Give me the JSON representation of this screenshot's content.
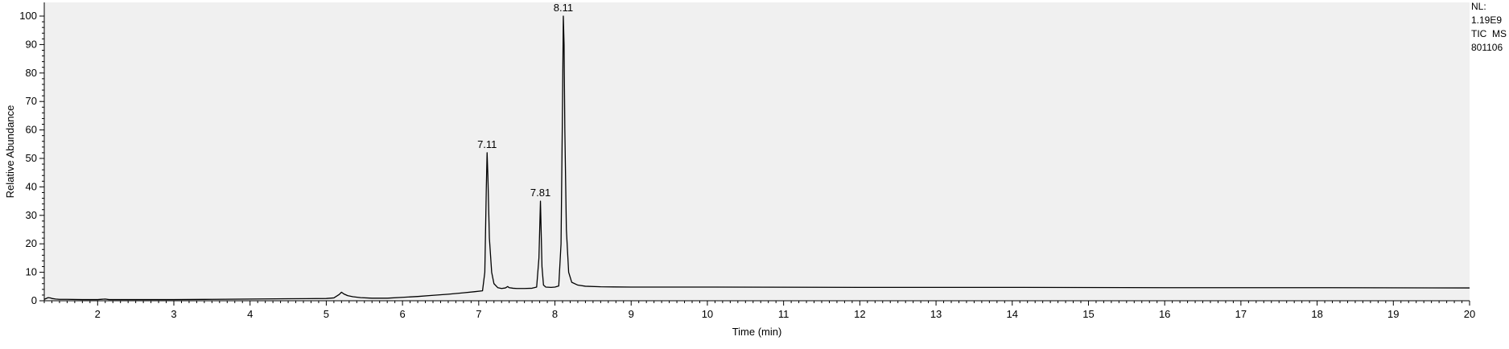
{
  "chart_data": {
    "type": "line",
    "title": "",
    "xlabel": "Time (min)",
    "ylabel": "Relative Abundance",
    "xlim": [
      1.3,
      20
    ],
    "ylim": [
      0,
      100
    ],
    "x_ticks": [
      2,
      3,
      4,
      5,
      6,
      7,
      8,
      9,
      10,
      11,
      12,
      13,
      14,
      15,
      16,
      17,
      18,
      19,
      20
    ],
    "y_ticks": [
      0,
      10,
      20,
      30,
      40,
      50,
      60,
      70,
      80,
      90,
      100
    ],
    "grid": false,
    "background": "#f0f0f0",
    "line_color": "#000000",
    "info_box": {
      "lines": [
        "NL:",
        "1.19E9",
        "TIC  MS",
        "801106"
      ],
      "position": "top-right"
    },
    "peak_labels": [
      {
        "x": 7.11,
        "y": 52,
        "label": "7.11"
      },
      {
        "x": 7.81,
        "y": 35,
        "label": "7.81"
      },
      {
        "x": 8.11,
        "y": 100,
        "label": "8.11"
      }
    ],
    "series": [
      {
        "x": [
          1.3,
          1.35,
          1.38,
          1.4,
          1.45,
          1.5,
          1.6,
          1.8,
          2.0,
          2.1,
          2.15,
          2.3,
          2.6,
          3.0,
          3.5,
          4.0,
          4.5,
          5.0,
          5.1,
          5.17,
          5.2,
          5.23,
          5.28,
          5.35,
          5.45,
          5.6,
          5.8,
          6.0,
          6.2,
          6.4,
          6.6,
          6.8,
          6.95,
          7.05,
          7.08,
          7.1,
          7.11,
          7.12,
          7.14,
          7.17,
          7.2,
          7.25,
          7.3,
          7.35,
          7.38,
          7.4,
          7.45,
          7.5,
          7.6,
          7.7,
          7.76,
          7.79,
          7.81,
          7.83,
          7.85,
          7.88,
          7.95,
          8.0,
          8.05,
          8.08,
          8.1,
          8.11,
          8.12,
          8.13,
          8.15,
          8.18,
          8.22,
          8.3,
          8.4,
          8.6,
          9.0,
          10.0,
          12.0,
          14.0,
          16.0,
          18.0,
          20.0
        ],
        "y": [
          0.5,
          1.1,
          1.0,
          0.8,
          0.6,
          0.5,
          0.5,
          0.4,
          0.4,
          0.6,
          0.4,
          0.4,
          0.4,
          0.4,
          0.5,
          0.6,
          0.7,
          0.8,
          1.0,
          2.2,
          3.0,
          2.4,
          1.8,
          1.4,
          1.1,
          0.9,
          0.9,
          1.2,
          1.5,
          1.9,
          2.3,
          2.8,
          3.2,
          3.5,
          10.0,
          40.0,
          52.0,
          44.0,
          22.0,
          10.0,
          6.0,
          4.6,
          4.3,
          4.5,
          5.0,
          4.6,
          4.4,
          4.3,
          4.3,
          4.4,
          4.8,
          15.0,
          35.0,
          12.0,
          5.5,
          4.8,
          4.7,
          4.8,
          5.2,
          20.0,
          70.0,
          100.0,
          90.0,
          60.0,
          25.0,
          10.0,
          6.5,
          5.5,
          5.1,
          4.9,
          4.8,
          4.8,
          4.7,
          4.7,
          4.6,
          4.6,
          4.5
        ]
      }
    ]
  }
}
